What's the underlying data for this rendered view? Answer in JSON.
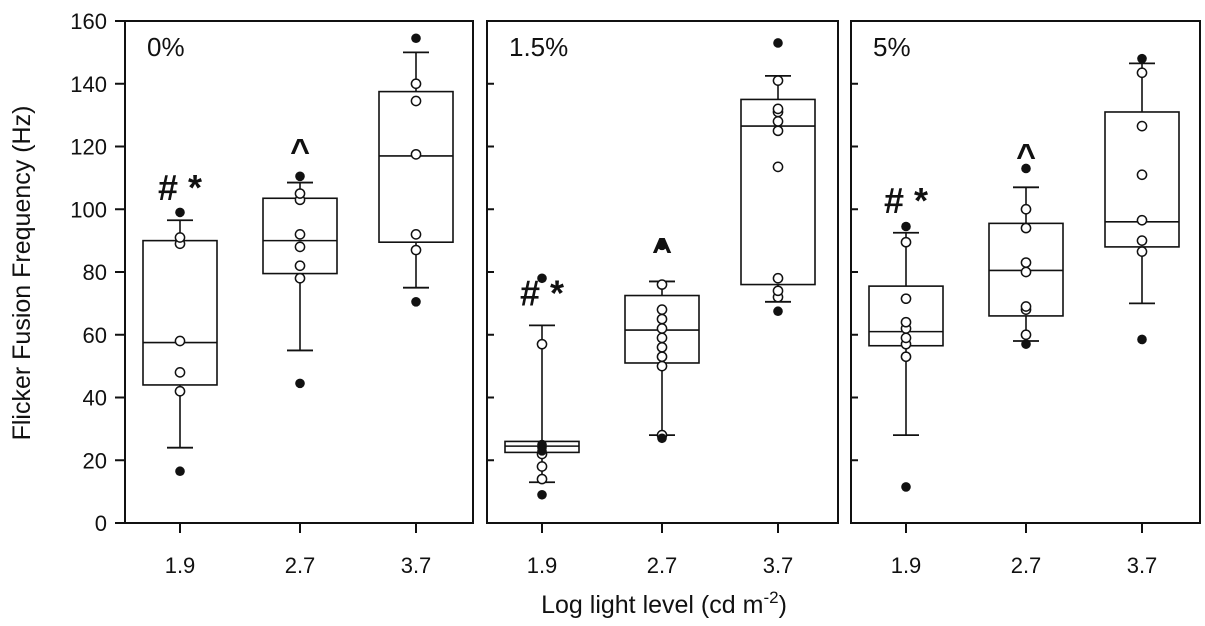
{
  "chart_data": {
    "type": "box",
    "ylabel": "Flicker Fusion Frequency (Hz)",
    "xlabel": {
      "main": "Log light level (cd m",
      "sup": "-2",
      "close": ")"
    },
    "ylim": [
      0,
      160
    ],
    "yticks": [
      0,
      20,
      40,
      60,
      80,
      100,
      120,
      140,
      160
    ],
    "categories": [
      "1.9",
      "2.7",
      "3.7"
    ],
    "panels": [
      {
        "label": "0%",
        "groups": [
          {
            "x": "1.9",
            "whisker_low": 24,
            "q1": 44,
            "median": 57.5,
            "q3": 90,
            "whisker_high": 96.5,
            "outliers": [
              16.5,
              99
            ],
            "points": [
              42,
              48,
              58,
              89,
              91
            ],
            "annotation": "# *"
          },
          {
            "x": "2.7",
            "whisker_low": 55,
            "q1": 79.5,
            "median": 90,
            "q3": 103.5,
            "whisker_high": 108.5,
            "outliers": [
              44.5,
              110.5
            ],
            "points": [
              78,
              82,
              88,
              92,
              103,
              105
            ],
            "annotation": "^"
          },
          {
            "x": "3.7",
            "whisker_low": 75,
            "q1": 89.5,
            "median": 117,
            "q3": 137.5,
            "whisker_high": 150,
            "outliers": [
              70.5,
              154.5
            ],
            "points": [
              87,
              92,
              117.5,
              134.5,
              140
            ],
            "annotation": ""
          }
        ]
      },
      {
        "label": "1.5%",
        "groups": [
          {
            "x": "1.9",
            "whisker_low": 13,
            "q1": 22.5,
            "median": 24.5,
            "q3": 26,
            "whisker_high": 63,
            "outliers": [
              9,
              23,
              24,
              25,
              78
            ],
            "points": [
              14,
              18,
              22,
              57
            ],
            "annotation": "# *"
          },
          {
            "x": "2.7",
            "whisker_low": 28,
            "q1": 51,
            "median": 61.5,
            "q3": 72.5,
            "whisker_high": 77,
            "outliers": [
              27,
              88.5
            ],
            "points": [
              28,
              50,
              53,
              56,
              59,
              62,
              65,
              68,
              76
            ],
            "annotation": "^"
          },
          {
            "x": "3.7",
            "whisker_low": 70.5,
            "q1": 76,
            "median": 126.5,
            "q3": 135,
            "whisker_high": 142.5,
            "outliers": [
              67.5,
              153
            ],
            "points": [
              72,
              74,
              78,
              113.5,
              125,
              128,
              131,
              132,
              141
            ],
            "annotation": ""
          }
        ]
      },
      {
        "label": "5%",
        "groups": [
          {
            "x": "1.9",
            "whisker_low": 28,
            "q1": 56.5,
            "median": 61,
            "q3": 75.5,
            "whisker_high": 92.5,
            "outliers": [
              11.5,
              94.5
            ],
            "points": [
              53,
              57,
              59,
              62,
              64,
              71.5,
              89.5
            ],
            "annotation": "# *"
          },
          {
            "x": "2.7",
            "whisker_low": 58,
            "q1": 66,
            "median": 80.5,
            "q3": 95.5,
            "whisker_high": 107,
            "outliers": [
              57,
              113
            ],
            "points": [
              60,
              68,
              69,
              80,
              83,
              94,
              100
            ],
            "annotation": "^"
          },
          {
            "x": "3.7",
            "whisker_low": 70,
            "q1": 88,
            "median": 96,
            "q3": 131,
            "whisker_high": 146.5,
            "outliers": [
              58.5,
              148
            ],
            "points": [
              86.5,
              90,
              96.5,
              111,
              126.5,
              143.5
            ],
            "annotation": ""
          }
        ]
      }
    ]
  }
}
